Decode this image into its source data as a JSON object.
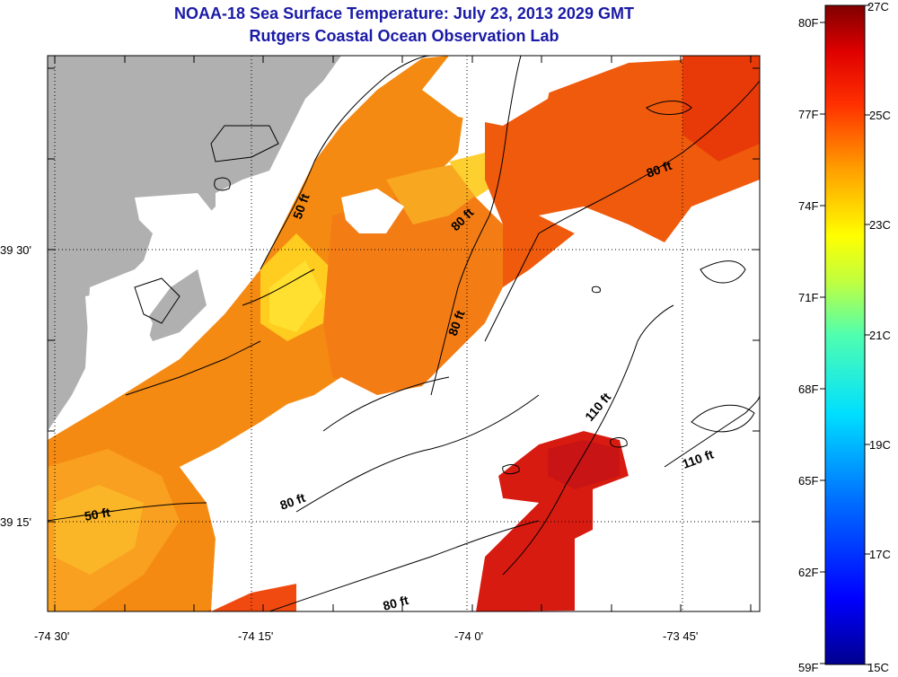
{
  "title": {
    "line1": "NOAA-18 Sea Surface Temperature:  July 23, 2013 2029 GMT",
    "line2": "Rutgers Coastal Ocean Observation Lab"
  },
  "map": {
    "x_ticks": [
      "-74 30'",
      "-74 15'",
      "-74 0'",
      "-73 45'"
    ],
    "y_ticks": [
      "39 30'",
      "39 15'"
    ],
    "contour_labels": [
      {
        "text": "50 ft",
        "id": "contour-50ft-north"
      },
      {
        "text": "50 ft",
        "id": "contour-50ft-south"
      },
      {
        "text": "80 ft",
        "id": "contour-80ft-a"
      },
      {
        "text": "80 ft",
        "id": "contour-80ft-b"
      },
      {
        "text": "80 ft",
        "id": "contour-80ft-c"
      },
      {
        "text": "80 ft",
        "id": "contour-80ft-d"
      },
      {
        "text": "80 ft",
        "id": "contour-80ft-e"
      },
      {
        "text": "110 ft",
        "id": "contour-110ft-a"
      },
      {
        "text": "110 ft",
        "id": "contour-110ft-b"
      }
    ]
  },
  "colorbar": {
    "fahrenheit": [
      "80F",
      "77F",
      "74F",
      "71F",
      "68F",
      "65F",
      "62F",
      "59F"
    ],
    "celsius": [
      "27C",
      "25C",
      "23C",
      "21C",
      "19C",
      "17C",
      "15C"
    ],
    "min_c": 15,
    "max_c": 27,
    "stops": [
      "#00008f",
      "#0000ff",
      "#0070ff",
      "#00dfff",
      "#50ffaf",
      "#bfff40",
      "#ffff00",
      "#ffa000",
      "#ff3000",
      "#df0000",
      "#800000"
    ]
  },
  "colors": {
    "land": "#b0b0b0",
    "no_data": "#ffffff",
    "title": "#1a1aa6"
  }
}
